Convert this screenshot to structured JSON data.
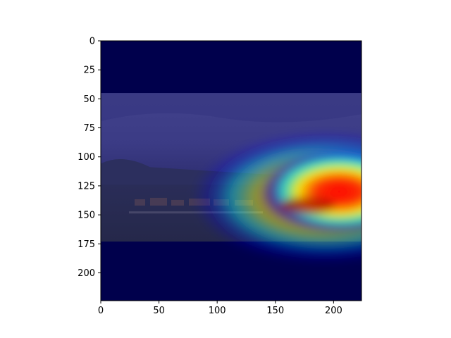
{
  "chart_data": {
    "type": "heatmap",
    "title": "",
    "xlabel": "",
    "ylabel": "",
    "description": "Image with Grad-CAM style jet heatmap overlay",
    "image_extent": {
      "x": [
        0,
        224
      ],
      "y": [
        0,
        224
      ]
    },
    "x_ticks": [
      0,
      50,
      100,
      150,
      200
    ],
    "y_ticks": [
      0,
      25,
      50,
      75,
      100,
      125,
      150,
      175,
      200
    ],
    "photo_band": {
      "y_top": 45,
      "y_bottom": 173
    },
    "heat_peak": {
      "x": 205,
      "y": 130
    },
    "colormap": "jet",
    "colors": {
      "background_dark": "#00004c",
      "sky": "#3b3b85",
      "ground": "#25284a",
      "heat_red": "#ff0000",
      "heat_yellow": "#ffff00",
      "heat_cyan": "#00ffff",
      "heat_blue": "#0000ff"
    }
  }
}
